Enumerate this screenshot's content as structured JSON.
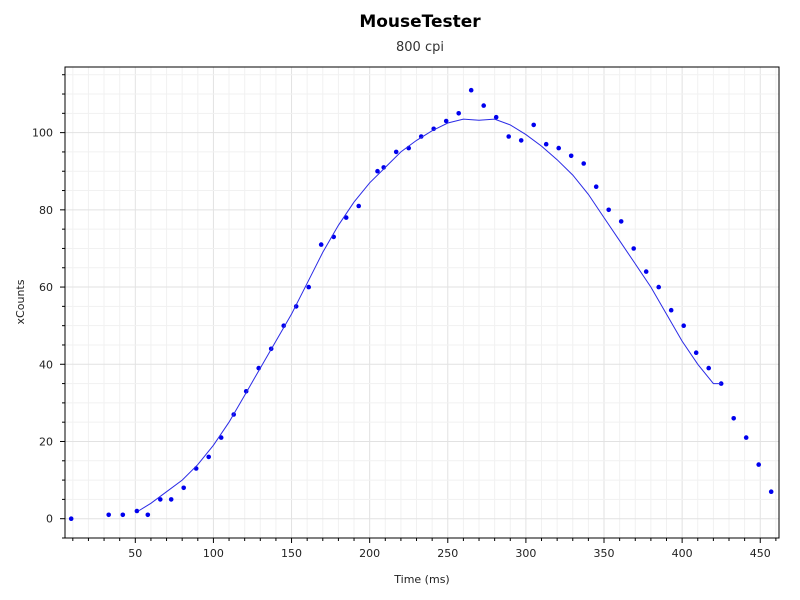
{
  "chart_data": {
    "type": "scatter",
    "title": "MouseTester",
    "subtitle": "800 cpi",
    "xlabel": "Time (ms)",
    "ylabel": "xCounts",
    "xlim": [
      5,
      462
    ],
    "ylim": [
      -5,
      117
    ],
    "x_ticks": [
      50,
      100,
      150,
      200,
      250,
      300,
      350,
      400,
      450
    ],
    "y_ticks": [
      0,
      20,
      40,
      60,
      80,
      100
    ],
    "grid": true,
    "colors": {
      "points": "#0000ee",
      "line": "#2b2be6"
    },
    "series": [
      {
        "kind": "points",
        "x": [
          9,
          33,
          42,
          51,
          58,
          66,
          73,
          81,
          89,
          97,
          105,
          113,
          121,
          129,
          137,
          145,
          153,
          161,
          169,
          177,
          185,
          193,
          205,
          209,
          217,
          225,
          233,
          241,
          249,
          257,
          265,
          273,
          281,
          289,
          297,
          305,
          313,
          321,
          329,
          337,
          345,
          353,
          361,
          369,
          377,
          385,
          393,
          401,
          409,
          417,
          425,
          433,
          441,
          449,
          457
        ],
        "y": [
          0,
          1,
          1,
          2,
          1,
          5,
          5,
          8,
          13,
          16,
          21,
          27,
          33,
          39,
          44,
          50,
          55,
          60,
          71,
          73,
          78,
          81,
          90,
          91,
          95,
          96,
          99,
          101,
          103,
          105,
          111,
          107,
          104,
          99,
          98,
          102,
          97,
          96,
          94,
          92,
          86,
          80,
          77,
          70,
          64,
          60,
          54,
          50,
          43,
          39,
          35,
          26,
          21,
          14,
          7
        ]
      },
      {
        "kind": "line",
        "x": [
          52,
          60,
          70,
          80,
          90,
          100,
          110,
          120,
          130,
          140,
          150,
          160,
          170,
          180,
          190,
          200,
          210,
          220,
          230,
          240,
          250,
          260,
          270,
          280,
          290,
          300,
          310,
          320,
          330,
          340,
          350,
          360,
          370,
          380,
          390,
          400,
          410,
          420,
          425
        ],
        "y": [
          2,
          4,
          7,
          10,
          14,
          19,
          25,
          32,
          39,
          46,
          53,
          61,
          69,
          76,
          82,
          87,
          91,
          95,
          98,
          100.5,
          102.5,
          103.5,
          103.2,
          103.5,
          102,
          99.5,
          96.5,
          93,
          89,
          84,
          78,
          72,
          66,
          60,
          53,
          46,
          40,
          35,
          35
        ]
      }
    ]
  }
}
